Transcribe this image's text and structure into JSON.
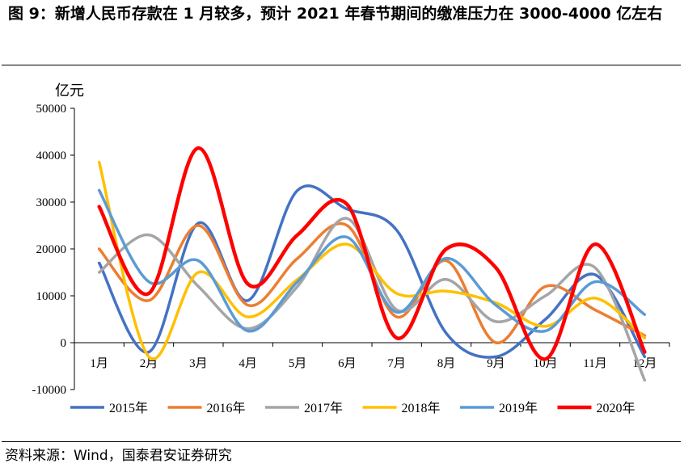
{
  "title": "图 9：新增人民币存款在 1 月较多，预计 2021 年春节期间的缴准压力在 3000-4000 亿左右",
  "source": "资料来源：Wind，国泰君安证券研究",
  "chart_data": {
    "type": "line",
    "unit": "亿元",
    "categories": [
      "1月",
      "2月",
      "3月",
      "4月",
      "5月",
      "6月",
      "7月",
      "8月",
      "9月",
      "10月",
      "11月",
      "12月"
    ],
    "ylim": [
      -10000,
      50000
    ],
    "yticks": [
      -10000,
      0,
      10000,
      20000,
      30000,
      40000,
      50000
    ],
    "grid": false,
    "legend_position": "bottom",
    "series": [
      {
        "name": "2015年",
        "color": "#4472C4",
        "values": [
          17000,
          -2000,
          25500,
          9000,
          32500,
          28500,
          24000,
          2000,
          -3000,
          5000,
          14500,
          -3000
        ]
      },
      {
        "name": "2016年",
        "color": "#ED7D31",
        "values": [
          20000,
          9000,
          25000,
          8000,
          18000,
          25000,
          5500,
          17500,
          0,
          12000,
          7000,
          1500
        ]
      },
      {
        "name": "2017年",
        "color": "#A5A5A5",
        "values": [
          15000,
          23000,
          12000,
          3000,
          12000,
          26500,
          7000,
          13500,
          4500,
          10000,
          16000,
          -8000
        ]
      },
      {
        "name": "2018年",
        "color": "#FFC000",
        "values": [
          38500,
          -3000,
          15000,
          5500,
          13500,
          21000,
          10500,
          11000,
          8500,
          3500,
          9500,
          1000
        ]
      },
      {
        "name": "2019年",
        "color": "#5B9BD5",
        "values": [
          32500,
          13000,
          17500,
          2500,
          13000,
          22500,
          6500,
          18000,
          8000,
          2500,
          13000,
          6000
        ]
      },
      {
        "name": "2020年",
        "color": "#FF0000",
        "values": [
          29000,
          10500,
          41500,
          12500,
          23000,
          29500,
          1000,
          20000,
          16000,
          -3500,
          21000,
          -2000
        ]
      }
    ]
  }
}
